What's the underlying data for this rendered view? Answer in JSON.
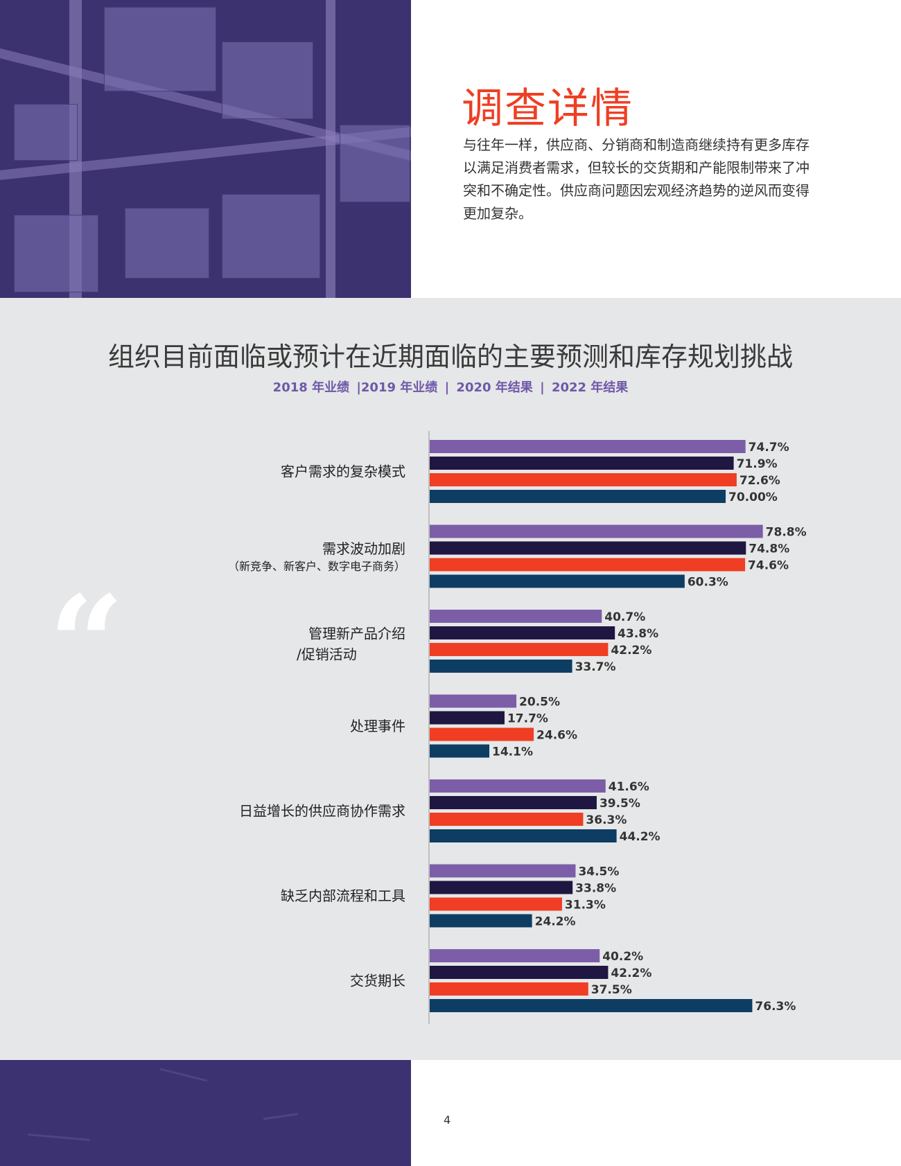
{
  "heading": "调查详情",
  "intro": "与往年一样，供应商、分销商和制造商继续持有更多库存以满足消费者需求，但较长的交货期和产能限制带来了冲突和不确定性。供应商问题因宏观经济趋势的逆风而变得更加复杂。",
  "quote_mark": "“",
  "page_number": "4",
  "chart_data": {
    "type": "bar",
    "orientation": "horizontal",
    "title": "组织目前面临或预计在近期面临的主要预测和库存规划挑战",
    "legend_items": [
      "2018 年业绩",
      "|2019 年业绩",
      "|",
      "2020 年结果",
      "|",
      "2022 年结果"
    ],
    "categories": [
      {
        "label": "客户需求的复杂模式",
        "sub": ""
      },
      {
        "label": "需求波动加剧",
        "sub": "（新竞争、新客户、数字电子商务）"
      },
      {
        "label": "管理新产品介绍",
        "sub": "/促销活动"
      },
      {
        "label": "处理事件",
        "sub": ""
      },
      {
        "label": "日益增长的供应商协作需求",
        "sub": ""
      },
      {
        "label": "缺乏内部流程和工具",
        "sub": ""
      },
      {
        "label": "交货期长",
        "sub": ""
      }
    ],
    "series": [
      {
        "name": "2018 年业绩",
        "color": "#7b5ea7",
        "values": [
          74.7,
          78.8,
          40.7,
          20.5,
          41.6,
          34.5,
          40.2
        ],
        "labels": [
          "74.7%",
          "78.8%",
          "40.7%",
          "20.5%",
          "41.6%",
          "34.5%",
          "40.2%"
        ]
      },
      {
        "name": "2019 年业绩",
        "color": "#1f1641",
        "values": [
          71.9,
          74.8,
          43.8,
          17.7,
          39.5,
          33.8,
          42.2
        ],
        "labels": [
          "71.9%",
          "74.8%",
          "43.8%",
          "17.7%",
          "39.5%",
          "33.8%",
          "42.2%"
        ]
      },
      {
        "name": "2020 年结果",
        "color": "#ef3e23",
        "values": [
          72.6,
          74.6,
          42.2,
          24.6,
          36.3,
          31.3,
          37.5
        ],
        "labels": [
          "72.6%",
          "74.6%",
          "42.2%",
          "24.6%",
          "36.3%",
          "31.3%",
          "37.5%"
        ]
      },
      {
        "name": "2022 年结果",
        "color": "#0e3d63",
        "values": [
          70.0,
          60.3,
          33.7,
          14.1,
          44.2,
          24.2,
          76.3
        ],
        "labels": [
          "70.00%",
          "60.3%",
          "33.7%",
          "14.1%",
          "44.2%",
          "24.2%",
          "76.3%"
        ]
      }
    ]
  }
}
